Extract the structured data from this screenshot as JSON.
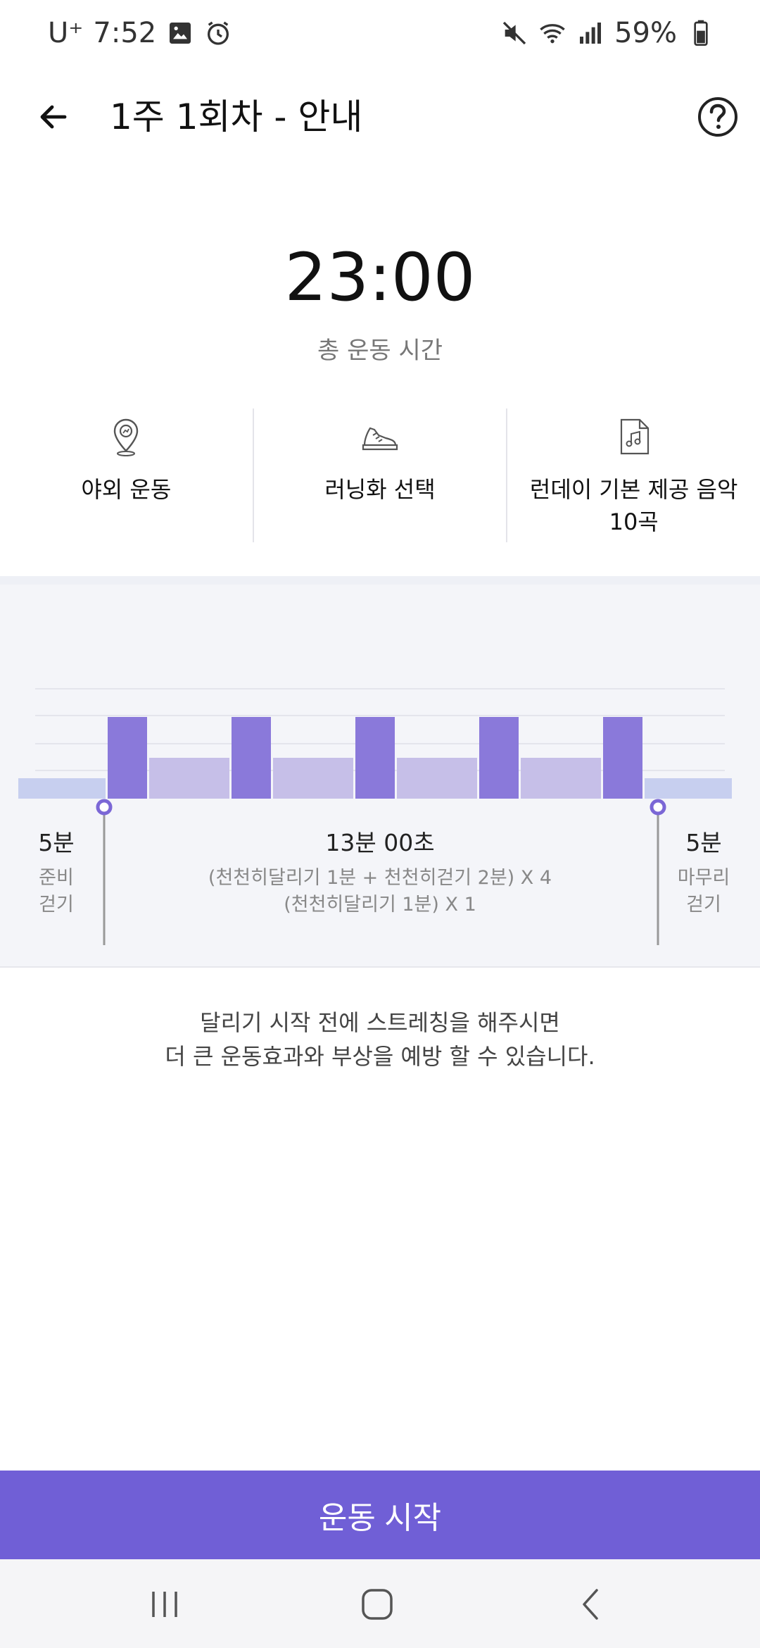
{
  "status_bar": {
    "carrier": "U⁺",
    "time": "7:52",
    "battery": "59%"
  },
  "app_bar": {
    "title": "1주 1회차 - 안내"
  },
  "summary": {
    "total_time": "23:00",
    "total_label": "총 운동 시간"
  },
  "info": [
    {
      "icon": "outdoor-location-icon",
      "label": "야외 운동"
    },
    {
      "icon": "running-shoe-icon",
      "label": "러닝화 선택"
    },
    {
      "icon": "music-file-icon",
      "label": "런데이 기본 제공 음악 10곡"
    }
  ],
  "schedule": {
    "warmup": {
      "duration": "5분",
      "desc_line1": "준비",
      "desc_line2": "걷기"
    },
    "main": {
      "duration": "13분 00초",
      "desc_line1": "(천천히달리기 1분 + 천천히걷기 2분) X 4",
      "desc_line2": "(천천히달리기 1분) X 1"
    },
    "cooldown": {
      "duration": "5분",
      "desc_line1": "마무리",
      "desc_line2": "걷기"
    }
  },
  "chart_data": {
    "type": "bar",
    "segments": [
      {
        "kind": "warmup-walk",
        "minutes": 5,
        "level": 1
      },
      {
        "kind": "run",
        "minutes": 1,
        "level": 4
      },
      {
        "kind": "walk",
        "minutes": 2,
        "level": 2
      },
      {
        "kind": "run",
        "minutes": 1,
        "level": 4
      },
      {
        "kind": "walk",
        "minutes": 2,
        "level": 2
      },
      {
        "kind": "run",
        "minutes": 1,
        "level": 4
      },
      {
        "kind": "walk",
        "minutes": 2,
        "level": 2
      },
      {
        "kind": "run",
        "minutes": 1,
        "level": 4
      },
      {
        "kind": "walk",
        "minutes": 2,
        "level": 2
      },
      {
        "kind": "run",
        "minutes": 1,
        "level": 4
      },
      {
        "kind": "cooldown-walk",
        "minutes": 5,
        "level": 1
      }
    ],
    "colors": {
      "run": "#8a79da",
      "walk": "#c6bfe8",
      "warm": "#c7cfef",
      "marker": "#7b67d6"
    }
  },
  "notice": {
    "line1": "달리기 시작 전에 스트레칭을 해주시면",
    "line2": "더 큰 운동효과와 부상을 예방 할 수 있습니다."
  },
  "start_button": {
    "label": "운동 시작"
  },
  "colors": {
    "accent": "#705fd6"
  }
}
